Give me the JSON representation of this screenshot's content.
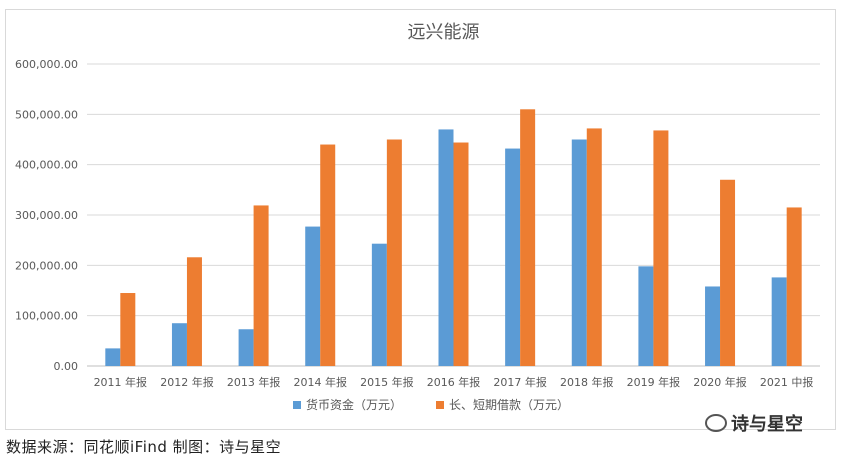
{
  "chart_data": {
    "type": "bar",
    "title": "远兴能源",
    "categories": [
      "2011 年报",
      "2012 年报",
      "2013 年报",
      "2014 年报",
      "2015 年报",
      "2016 年报",
      "2017 年报",
      "2018 年报",
      "2019 年报",
      "2020 年报",
      "2021 中报"
    ],
    "series": [
      {
        "name": "货币资金（万元）",
        "color": "#5b9bd5",
        "values": [
          35000,
          85000,
          73000,
          277000,
          243000,
          470000,
          432000,
          450000,
          198000,
          158000,
          176000
        ]
      },
      {
        "name": "长、短期借款（万元）",
        "color": "#ed7d31",
        "values": [
          145000,
          216000,
          319000,
          440000,
          450000,
          444000,
          510000,
          472000,
          468000,
          370000,
          315000
        ]
      }
    ],
    "y_ticks": [
      "0.00",
      "100,000.00",
      "200,000.00",
      "300,000.00",
      "400,000.00",
      "500,000.00",
      "600,000.00"
    ],
    "ylim": [
      0,
      600000
    ],
    "grid": true,
    "legend_position": "bottom"
  },
  "footer": {
    "source": "数据来源：同花顺iFind    制图：诗与星空",
    "watermark": "诗与星空"
  }
}
